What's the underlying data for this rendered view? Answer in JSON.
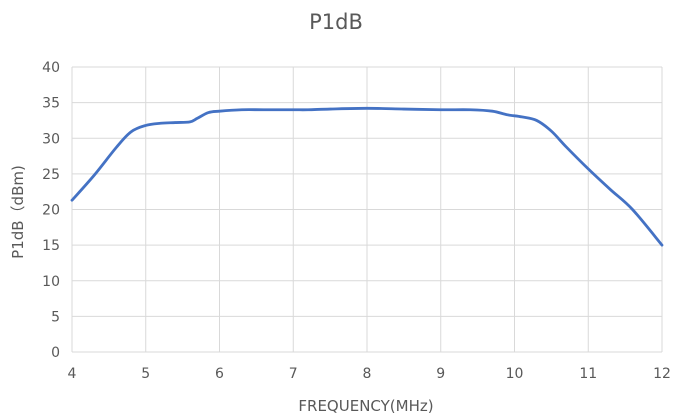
{
  "chart_data": {
    "type": "line",
    "title": "P1dB",
    "xlabel": "FREQUENCY(MHz)",
    "ylabel": "P1dB（dBm)",
    "xlim": [
      4,
      12
    ],
    "ylim": [
      0,
      40
    ],
    "x_ticks": [
      "4",
      "5",
      "6",
      "7",
      "8",
      "9",
      "10",
      "11",
      "12"
    ],
    "y_ticks": [
      "0",
      "5",
      "10",
      "15",
      "20",
      "25",
      "30",
      "35",
      "40"
    ],
    "grid": true,
    "legend": "none",
    "series": [
      {
        "color": "#4472c4",
        "points": [
          [
            4.0,
            21.3
          ],
          [
            4.3,
            24.8
          ],
          [
            4.6,
            28.7
          ],
          [
            4.8,
            30.9
          ],
          [
            5.0,
            31.8
          ],
          [
            5.2,
            32.1
          ],
          [
            5.4,
            32.2
          ],
          [
            5.6,
            32.3
          ],
          [
            5.7,
            32.8
          ],
          [
            5.85,
            33.6
          ],
          [
            6.0,
            33.8
          ],
          [
            6.3,
            34.0
          ],
          [
            6.6,
            34.0
          ],
          [
            7.0,
            34.0
          ],
          [
            7.2,
            34.0
          ],
          [
            7.5,
            34.1
          ],
          [
            8.0,
            34.2
          ],
          [
            8.5,
            34.1
          ],
          [
            9.0,
            34.0
          ],
          [
            9.4,
            34.0
          ],
          [
            9.7,
            33.8
          ],
          [
            9.9,
            33.3
          ],
          [
            10.1,
            33.0
          ],
          [
            10.3,
            32.5
          ],
          [
            10.5,
            31.0
          ],
          [
            10.7,
            28.8
          ],
          [
            11.0,
            25.7
          ],
          [
            11.3,
            22.8
          ],
          [
            11.6,
            20.0
          ],
          [
            12.0,
            15.0
          ]
        ]
      }
    ]
  }
}
